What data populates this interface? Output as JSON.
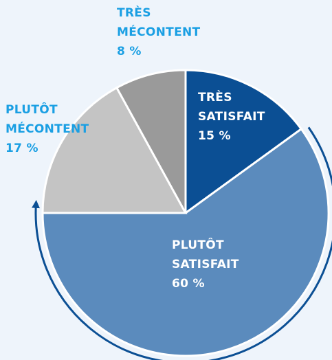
{
  "chart_data": {
    "type": "pie",
    "categories": [
      "TRÈS SATISFAIT",
      "PLUTÔT SATISFAIT",
      "PLUTÔT MÉCONTENT",
      "TRÈS MÉCONTENT"
    ],
    "values": [
      15,
      60,
      17,
      8
    ],
    "value_labels": [
      "15 %",
      "60 %",
      "17 %",
      "8 %"
    ],
    "colors": [
      "#0b4f94",
      "#5b8bbd",
      "#c4c4c4",
      "#9a9a9a"
    ],
    "label_colors": [
      "#ffffff",
      "#ffffff",
      "#1a9fe3",
      "#1a9fe3"
    ]
  }
}
